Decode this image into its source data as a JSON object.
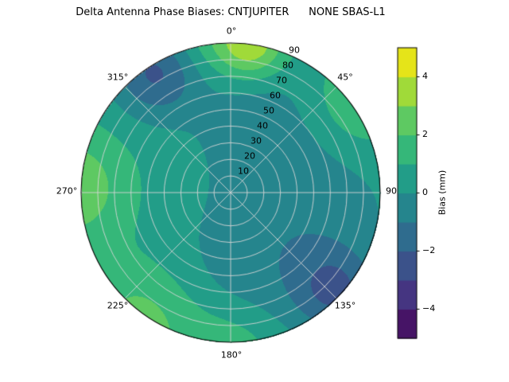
{
  "chart_data": {
    "type": "polar_contour",
    "title": "Delta Antenna Phase Biases: CNTJUPITER      NONE SBAS-L1",
    "theta_zero_location": "top",
    "theta_direction": "clockwise",
    "r_max": 90,
    "theta_ticks": [
      {
        "angle_deg": 0,
        "label": "0°"
      },
      {
        "angle_deg": 45,
        "label": "45°"
      },
      {
        "angle_deg": 90,
        "label": "90"
      },
      {
        "angle_deg": 135,
        "label": "135°"
      },
      {
        "angle_deg": 180,
        "label": "180°"
      },
      {
        "angle_deg": 225,
        "label": "225°"
      },
      {
        "angle_deg": 270,
        "label": "270°"
      },
      {
        "angle_deg": 315,
        "label": "315°"
      }
    ],
    "r_ticks": [
      {
        "r": 10,
        "label": "10"
      },
      {
        "r": 20,
        "label": "20"
      },
      {
        "r": 30,
        "label": "30"
      },
      {
        "r": 40,
        "label": "40"
      },
      {
        "r": 50,
        "label": "50"
      },
      {
        "r": 60,
        "label": "60"
      },
      {
        "r": 70,
        "label": "70"
      },
      {
        "r": 80,
        "label": "80"
      },
      {
        "r": 90,
        "label": "90"
      }
    ],
    "grid_color": "#d6d6d6",
    "levels": [
      -5,
      -4,
      -3,
      -2,
      -1,
      0,
      1,
      2,
      3,
      4,
      5
    ],
    "band_colors": [
      "#461466",
      "#453581",
      "#3b528a",
      "#2f6c8e",
      "#25858d",
      "#229d88",
      "#35b779",
      "#5ec962",
      "#a0da39",
      "#e5e419"
    ],
    "colorbar": {
      "label": "Bias (mm)",
      "vmin": -5,
      "vmax": 5,
      "ticks": [
        {
          "value": 4,
          "label": "4"
        },
        {
          "value": 2,
          "label": "2"
        },
        {
          "value": 0,
          "label": "0"
        },
        {
          "value": -2,
          "label": "−2"
        },
        {
          "value": -4,
          "label": "−4"
        }
      ]
    },
    "field": {
      "base": 0.5,
      "blobs": [
        {
          "az_deg": 8,
          "r_frac": 1.0,
          "amp": 3.2,
          "sigma": 0.16
        },
        {
          "az_deg": 352,
          "r_frac": 1.05,
          "amp": 1.2,
          "sigma": 0.2
        },
        {
          "az_deg": 328,
          "r_frac": 0.95,
          "amp": -2.7,
          "sigma": 0.2
        },
        {
          "az_deg": 272,
          "r_frac": 1.08,
          "amp": 2.3,
          "sigma": 0.28
        },
        {
          "az_deg": 215,
          "r_frac": 1.06,
          "amp": 1.9,
          "sigma": 0.28
        },
        {
          "az_deg": 180,
          "r_frac": 1.05,
          "amp": 1.3,
          "sigma": 0.22
        },
        {
          "az_deg": 133,
          "r_frac": 0.95,
          "amp": -2.5,
          "sigma": 0.2
        },
        {
          "az_deg": 55,
          "r_frac": 1.06,
          "amp": 1.5,
          "sigma": 0.24
        },
        {
          "az_deg": 95,
          "r_frac": 0.5,
          "amp": -1.1,
          "sigma": 0.38
        },
        {
          "az_deg": 170,
          "r_frac": 0.55,
          "amp": -0.9,
          "sigma": 0.33
        },
        {
          "az_deg": 15,
          "r_frac": 0.55,
          "amp": -0.9,
          "sigma": 0.28
        }
      ]
    }
  }
}
